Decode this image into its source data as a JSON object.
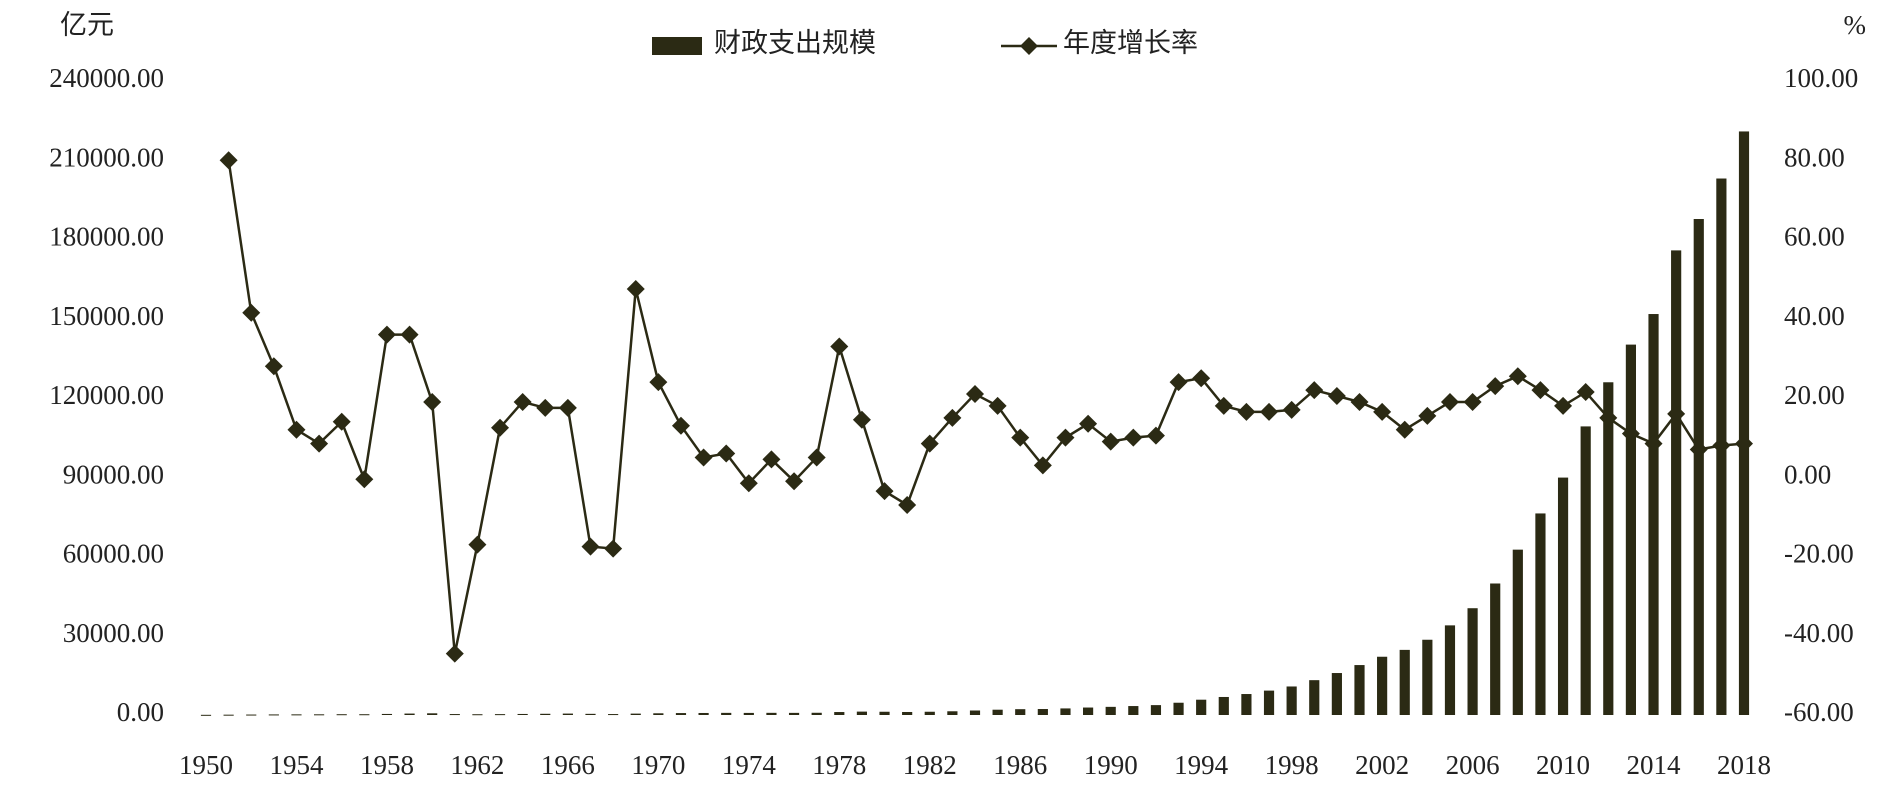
{
  "chart_data": {
    "type": "bar-line",
    "y_label": "亿元",
    "y2_label": "%",
    "x": [
      1950,
      1951,
      1952,
      1953,
      1954,
      1955,
      1956,
      1957,
      1958,
      1959,
      1960,
      1961,
      1962,
      1963,
      1964,
      1965,
      1966,
      1967,
      1968,
      1969,
      1970,
      1971,
      1972,
      1973,
      1974,
      1975,
      1976,
      1977,
      1978,
      1979,
      1980,
      1981,
      1982,
      1983,
      1984,
      1985,
      1986,
      1987,
      1988,
      1989,
      1990,
      1991,
      1992,
      1993,
      1994,
      1995,
      1996,
      1997,
      1998,
      1999,
      2000,
      2001,
      2002,
      2003,
      2004,
      2005,
      2006,
      2007,
      2008,
      2009,
      2010,
      2011,
      2012,
      2013,
      2014,
      2015,
      2016,
      2017,
      2018
    ],
    "series": [
      {
        "name": "财政支出规模",
        "type": "bar",
        "axis": "y",
        "color": "#2b2a14",
        "values": [
          68.05,
          122.07,
          172.07,
          219.21,
          244.11,
          262.73,
          298.52,
          295.95,
          400.36,
          543.17,
          643.68,
          356.09,
          294.88,
          332.05,
          393.79,
          459.97,
          537.65,
          439.84,
          357.84,
          525.86,
          649.41,
          732.17,
          765.86,
          808.78,
          790.25,
          820.88,
          806.2,
          843.53,
          1122.09,
          1281.79,
          1228.83,
          1138.41,
          1229.98,
          1409.52,
          1701.02,
          2004.25,
          2204.91,
          2262.18,
          2491.21,
          2823.78,
          3083.59,
          3386.62,
          3742.2,
          4642.3,
          5792.62,
          6823.72,
          7937.55,
          9233.56,
          10798.18,
          13187.67,
          15886.5,
          18902.58,
          22053.15,
          24649.95,
          28486.89,
          33930.28,
          40422.73,
          49781.35,
          62592.66,
          76299.93,
          89874.16,
          109247.79,
          125952.97,
          140212.1,
          151785.56,
          175877.77,
          187755.21,
          203085.49,
          220904.13
        ]
      },
      {
        "name": "年度增长率",
        "type": "line",
        "axis": "y2",
        "color": "#2b2a14",
        "values": [
          null,
          80,
          41.5,
          28,
          12,
          8.5,
          14,
          -0.5,
          36,
          36,
          19,
          -44.5,
          -17,
          12.5,
          19,
          17.5,
          17.5,
          -17.5,
          -18,
          47.5,
          24,
          13,
          5,
          6,
          -1.5,
          4.5,
          -1,
          5,
          33,
          14.5,
          -3.5,
          -7,
          8.5,
          15,
          21,
          18,
          10,
          3,
          10,
          13.5,
          9,
          10,
          10.5,
          24,
          25,
          18,
          16.5,
          16.5,
          17,
          22,
          20.5,
          19,
          16.5,
          12,
          15.5,
          19,
          19,
          23,
          25.5,
          22,
          18,
          21.5,
          15,
          11,
          8.5,
          16,
          7,
          8,
          8.5
        ]
      }
    ],
    "xlim": [
      1950,
      2018
    ],
    "xticks": [
      1950,
      1954,
      1958,
      1962,
      1966,
      1970,
      1974,
      1978,
      1982,
      1986,
      1990,
      1994,
      1998,
      2002,
      2006,
      2010,
      2014,
      2018
    ],
    "ylim": [
      0,
      240000
    ],
    "yticks": [
      {
        "value": 0,
        "label": "0.00"
      },
      {
        "value": 30000,
        "label": "30000.00"
      },
      {
        "value": 60000,
        "label": "60000.00"
      },
      {
        "value": 90000,
        "label": "90000.00"
      },
      {
        "value": 120000,
        "label": "120000.00"
      },
      {
        "value": 150000,
        "label": "150000.00"
      },
      {
        "value": 180000,
        "label": "180000.00"
      },
      {
        "value": 210000,
        "label": "210000.00"
      },
      {
        "value": 240000,
        "label": "240000.00"
      }
    ],
    "y2lim": [
      -60,
      100
    ],
    "y2ticks": [
      {
        "value": -60,
        "label": "-60.00"
      },
      {
        "value": -40,
        "label": "-40.00"
      },
      {
        "value": -20,
        "label": "-20.00"
      },
      {
        "value": 0,
        "label": "0.00"
      },
      {
        "value": 20,
        "label": "20.00"
      },
      {
        "value": 40,
        "label": "40.00"
      },
      {
        "value": 60,
        "label": "60.00"
      },
      {
        "value": 80,
        "label": "80.00"
      },
      {
        "value": 100,
        "label": "100.00"
      }
    ],
    "legend": "top"
  }
}
